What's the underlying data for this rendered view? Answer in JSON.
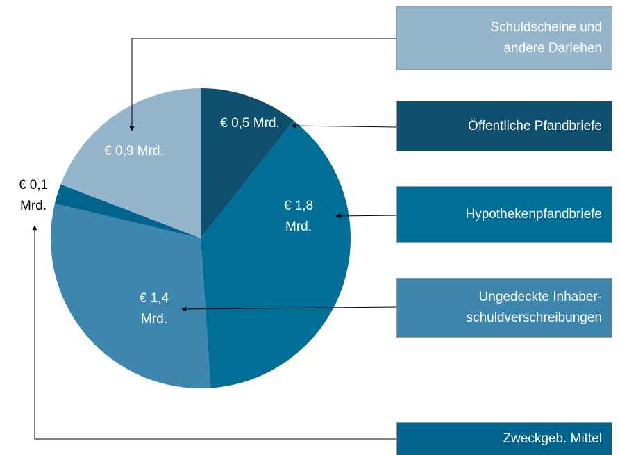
{
  "chart_data": {
    "type": "pie",
    "categories": [
      "Öffentliche Pfandbriefe",
      "Hypothekenpfandbriefe",
      "Ungedeckte Inhaber-\nschuldverschreibungen",
      "Zweckgeb. Mittel",
      "Schuldscheine und\nandere Darlehen"
    ],
    "values": [
      0.5,
      1.8,
      1.4,
      0.1,
      0.9
    ],
    "value_labels": [
      "€ 0,5 Mrd.",
      "€ 1,8\nMrd.",
      "€ 1,4\nMrd.",
      "€ 0,1\nMrd.",
      "€ 0,9 Mrd."
    ],
    "colors": [
      "#0e4f6f",
      "#006e97",
      "#3d86ae",
      "#00648f",
      "#95b5cd"
    ]
  }
}
